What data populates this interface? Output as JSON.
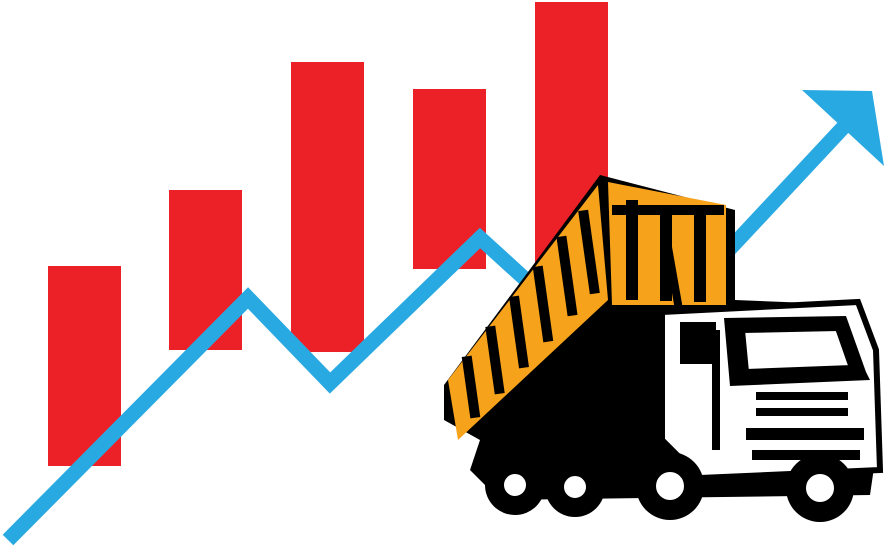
{
  "illustration": {
    "subject": "dump-truck-growth-chart",
    "colors": {
      "bar": "#ec2127",
      "trend_line": "#29a9e1",
      "truck_bed": "#f7a21b",
      "truck_body": "#000000",
      "truck_cab": "#ffffff"
    },
    "bars": [
      {
        "relative_height": 0.43
      },
      {
        "relative_height": 0.59
      },
      {
        "relative_height": 0.71
      },
      {
        "relative_height": 0.67
      },
      {
        "relative_height": 0.83
      }
    ],
    "icons": [
      "bar-chart-icon",
      "trend-arrow-icon",
      "dump-truck-icon"
    ]
  }
}
